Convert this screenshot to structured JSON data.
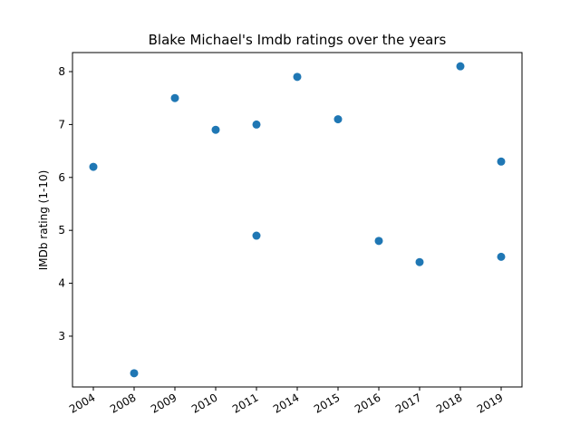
{
  "chart_data": {
    "type": "scatter",
    "title": "Blake Michael's Imdb ratings over the years",
    "xlabel": "",
    "ylabel": "IMDb rating (1-10)",
    "categories": [
      "2004",
      "2008",
      "2009",
      "2010",
      "2011",
      "2014",
      "2015",
      "2016",
      "2017",
      "2018",
      "2019"
    ],
    "points": [
      {
        "x": "2004",
        "y": 6.2
      },
      {
        "x": "2008",
        "y": 2.3
      },
      {
        "x": "2009",
        "y": 7.5
      },
      {
        "x": "2010",
        "y": 6.9
      },
      {
        "x": "2011",
        "y": 7.0
      },
      {
        "x": "2011",
        "y": 4.9
      },
      {
        "x": "2014",
        "y": 7.9
      },
      {
        "x": "2015",
        "y": 7.1
      },
      {
        "x": "2016",
        "y": 4.8
      },
      {
        "x": "2017",
        "y": 4.4
      },
      {
        "x": "2018",
        "y": 8.1
      },
      {
        "x": "2019",
        "y": 6.3
      },
      {
        "x": "2019",
        "y": 4.5
      }
    ],
    "yticks": [
      3,
      4,
      5,
      6,
      7,
      8
    ],
    "ylim": [
      2.04,
      8.36
    ],
    "grid": false,
    "marker_color": "#1f77b4"
  }
}
